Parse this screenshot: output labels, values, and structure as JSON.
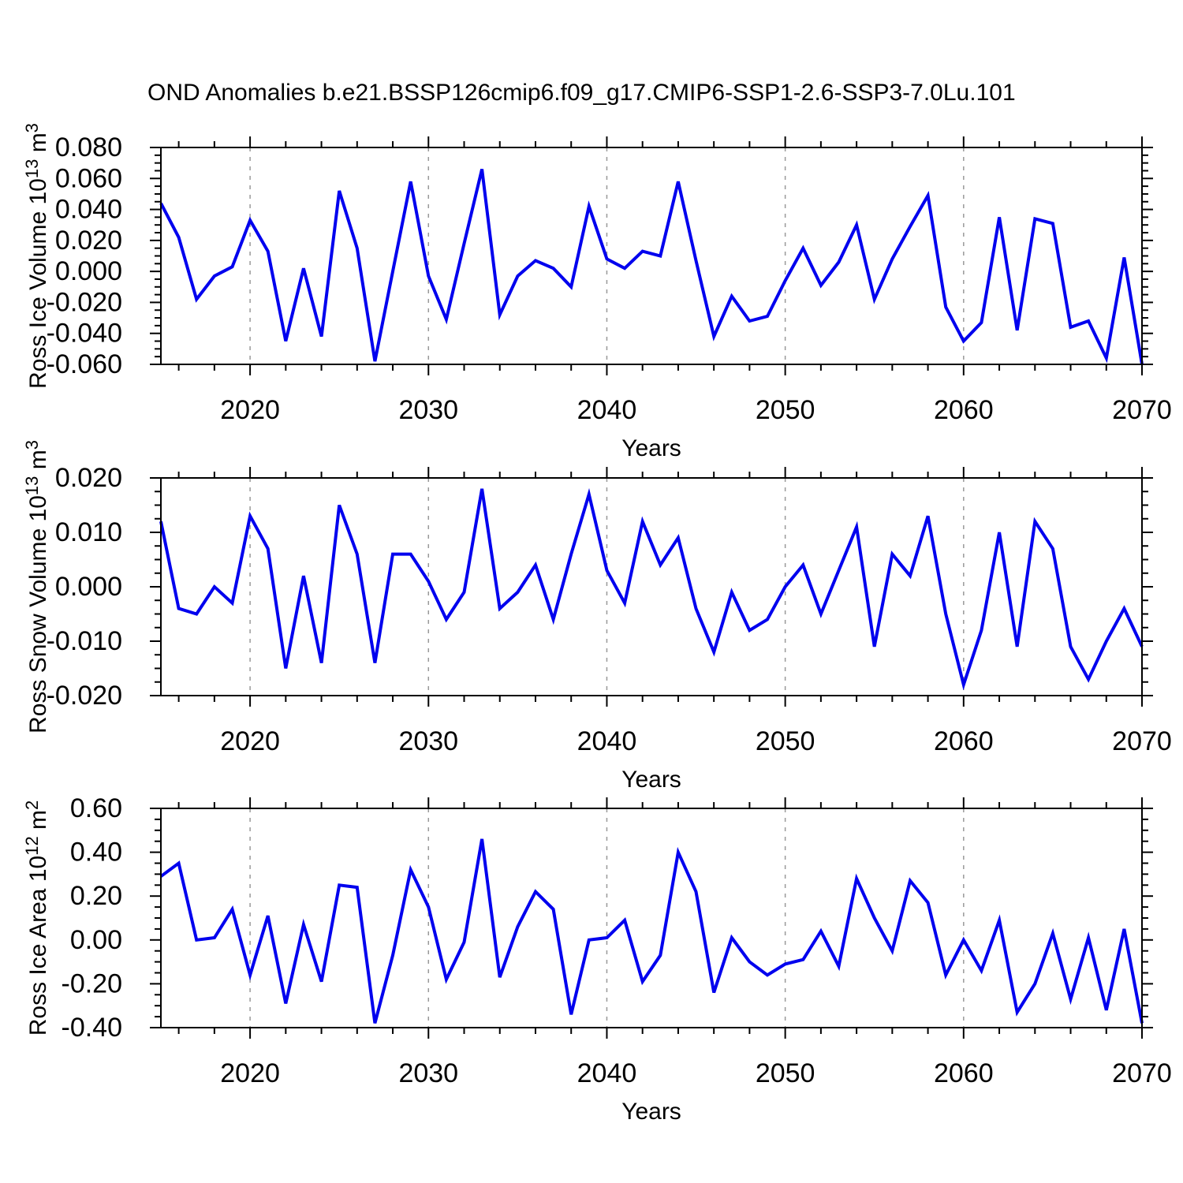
{
  "chart_data": {
    "type": "line",
    "title": "OND Anomalies b.e21.BSSP126cmip6.f09_g17.CMIP6-SSP1-2.6-SSP3-7.0Lu.101",
    "xlabel": "Years",
    "x_range": [
      2015,
      2070
    ],
    "x": [
      2015,
      2016,
      2017,
      2018,
      2019,
      2020,
      2021,
      2022,
      2023,
      2024,
      2025,
      2026,
      2027,
      2028,
      2029,
      2030,
      2031,
      2032,
      2033,
      2034,
      2035,
      2036,
      2037,
      2038,
      2039,
      2040,
      2041,
      2042,
      2043,
      2044,
      2045,
      2046,
      2047,
      2048,
      2049,
      2050,
      2051,
      2052,
      2053,
      2054,
      2055,
      2056,
      2057,
      2058,
      2059,
      2060,
      2061,
      2062,
      2063,
      2064,
      2065,
      2066,
      2067,
      2068,
      2069,
      2070
    ],
    "xtick_vals": [
      2020,
      2030,
      2040,
      2050,
      2060,
      2070
    ],
    "xtick_labels": [
      "2020",
      "2030",
      "2040",
      "2050",
      "2060",
      "2070"
    ],
    "xtick_minor_step": 2,
    "grid_x": [
      2020,
      2030,
      2040,
      2050,
      2060
    ],
    "grid_style": "dashed",
    "line_color": "#0000ee",
    "grid_color": "#999999",
    "axis_color": "#000000",
    "panels": [
      {
        "name": "ross-ice-volume",
        "ylabel": "Ross Ice Volume 10^13 m^3",
        "ylabel_parts": [
          "Ross Ice Volume 10",
          "13",
          " m",
          "3"
        ],
        "ylim": [
          -0.06,
          0.08
        ],
        "ytick_vals": [
          0.08,
          0.06,
          0.04,
          0.02,
          0.0,
          -0.02,
          -0.04,
          -0.06
        ],
        "ytick_labels": [
          "0.080",
          "0.060",
          "0.040",
          "0.020",
          "0.000",
          "-0.020",
          "-0.040",
          "-0.060"
        ],
        "ytick_minor_step": 0.005,
        "values": [
          0.044,
          0.022,
          -0.018,
          -0.003,
          0.003,
          0.033,
          0.013,
          -0.045,
          0.002,
          -0.042,
          0.052,
          0.015,
          -0.058,
          0.0,
          0.058,
          -0.003,
          -0.031,
          0.018,
          0.066,
          -0.028,
          -0.003,
          0.007,
          0.002,
          -0.01,
          0.042,
          0.008,
          0.002,
          0.013,
          0.01,
          0.058,
          0.007,
          -0.042,
          -0.016,
          -0.032,
          -0.029,
          -0.006,
          0.015,
          -0.009,
          0.006,
          0.03,
          -0.018,
          0.008,
          0.029,
          0.049,
          -0.023,
          -0.045,
          -0.033,
          0.035,
          -0.038,
          0.034,
          0.031,
          -0.036,
          -0.032,
          -0.056,
          0.009,
          -0.06
        ]
      },
      {
        "name": "ross-snow-volume",
        "ylabel": "Ross Snow Volume 10^13 m^3",
        "ylabel_parts": [
          "Ross Snow Volume 10",
          "13",
          " m",
          "3"
        ],
        "ylim": [
          -0.02,
          0.02
        ],
        "ytick_vals": [
          0.02,
          0.01,
          0.0,
          -0.01,
          -0.02
        ],
        "ytick_labels": [
          "0.020",
          "0.010",
          "0.000",
          "-0.010",
          "-0.020"
        ],
        "ytick_minor_step": 0.0025,
        "values": [
          0.012,
          -0.004,
          -0.005,
          0.0,
          -0.003,
          0.013,
          0.007,
          -0.015,
          0.002,
          -0.014,
          0.015,
          0.006,
          -0.014,
          0.006,
          0.006,
          0.001,
          -0.006,
          -0.001,
          0.018,
          -0.004,
          -0.001,
          0.004,
          -0.006,
          0.006,
          0.017,
          0.003,
          -0.003,
          0.012,
          0.004,
          0.009,
          -0.004,
          -0.012,
          -0.001,
          -0.008,
          -0.006,
          0.0,
          0.004,
          -0.005,
          0.003,
          0.011,
          -0.011,
          0.006,
          0.002,
          0.013,
          -0.005,
          -0.018,
          -0.008,
          0.01,
          -0.011,
          0.012,
          0.007,
          -0.011,
          -0.017,
          -0.01,
          -0.004,
          -0.011
        ]
      },
      {
        "name": "ross-ice-area",
        "ylabel": "Ross Ice Area 10^12 m^2",
        "ylabel_parts": [
          "Ross Ice Area 10",
          "12",
          " m",
          "2"
        ],
        "ylim": [
          -0.4,
          0.6
        ],
        "ytick_vals": [
          0.6,
          0.4,
          0.2,
          0.0,
          -0.2,
          -0.4
        ],
        "ytick_labels": [
          "0.60",
          "0.40",
          "0.20",
          "0.00",
          "-0.20",
          "-0.40"
        ],
        "ytick_minor_step": 0.05,
        "values": [
          0.29,
          0.35,
          0.0,
          0.01,
          0.14,
          -0.16,
          0.11,
          -0.29,
          0.07,
          -0.19,
          0.25,
          0.24,
          -0.38,
          -0.07,
          0.32,
          0.15,
          -0.18,
          -0.01,
          0.46,
          -0.17,
          0.06,
          0.22,
          0.14,
          -0.34,
          0.0,
          0.01,
          0.09,
          -0.19,
          -0.07,
          0.4,
          0.22,
          -0.24,
          0.01,
          -0.1,
          -0.16,
          -0.11,
          -0.09,
          0.04,
          -0.12,
          0.28,
          0.1,
          -0.05,
          0.27,
          0.17,
          -0.16,
          0.0,
          -0.14,
          0.09,
          -0.33,
          -0.2,
          0.03,
          -0.27,
          0.01,
          -0.32,
          0.05,
          -0.38
        ]
      }
    ]
  }
}
